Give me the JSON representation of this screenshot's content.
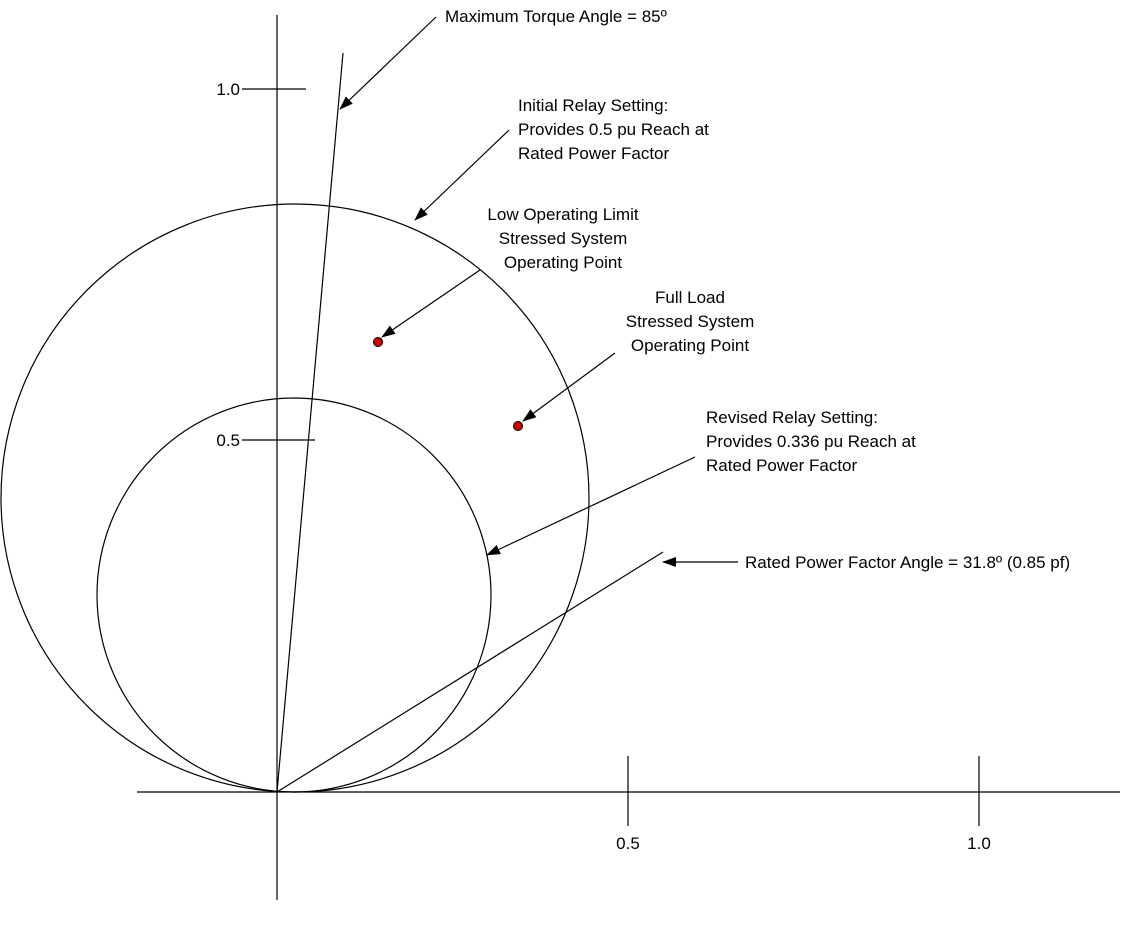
{
  "axes": {
    "x_ticks": [
      "0.5",
      "1.0"
    ],
    "y_ticks": [
      "1.0",
      "0.5"
    ]
  },
  "annotations": {
    "max_torque": "Maximum Torque Angle = 85º",
    "initial_relay": [
      "Initial Relay Setting:",
      "Provides 0.5 pu Reach at",
      "Rated Power Factor"
    ],
    "low_limit": [
      "Low Operating Limit",
      "Stressed System",
      "Operating Point"
    ],
    "full_load": [
      "Full Load",
      "Stressed System",
      "Operating Point"
    ],
    "revised_relay": [
      "Revised Relay Setting:",
      "Provides 0.336 pu Reach at",
      "Rated Power Factor"
    ],
    "rated_pf": "Rated Power Factor Angle = 31.8º (0.85 pf)"
  },
  "colors": {
    "point_fill": "#cc0000",
    "line": "#000000"
  }
}
